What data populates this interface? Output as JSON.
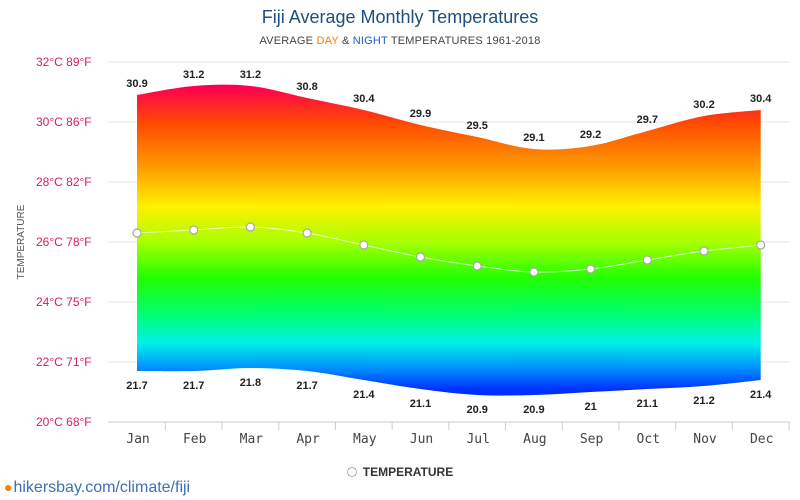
{
  "chart_data": {
    "type": "area",
    "title": "Fiji Average Monthly Temperatures",
    "subtitle": {
      "prefix": "AVERAGE ",
      "day": "DAY",
      "amp": " & ",
      "night": "NIGHT",
      "suffix": " TEMPERATURES 1961-2018"
    },
    "ylabel": "TEMPERATURE",
    "categories": [
      "Jan",
      "Feb",
      "Mar",
      "Apr",
      "May",
      "Jun",
      "Jul",
      "Aug",
      "Sep",
      "Oct",
      "Nov",
      "Dec"
    ],
    "y_ticks": [
      {
        "value": 20,
        "label": "20°C 68°F"
      },
      {
        "value": 22,
        "label": "22°C 71°F"
      },
      {
        "value": 24,
        "label": "24°C 75°F"
      },
      {
        "value": 26,
        "label": "26°C 78°F"
      },
      {
        "value": 28,
        "label": "28°C 82°F"
      },
      {
        "value": 30,
        "label": "30°C 86°F"
      },
      {
        "value": 32,
        "label": "32°C 89°F"
      }
    ],
    "ylim": [
      20,
      32
    ],
    "grid": true,
    "series": [
      {
        "key": "day",
        "values": [
          30.9,
          31.2,
          31.2,
          30.8,
          30.4,
          29.9,
          29.5,
          29.1,
          29.2,
          29.7,
          30.2,
          30.4
        ]
      },
      {
        "key": "night",
        "values": [
          21.7,
          21.7,
          21.8,
          21.7,
          21.4,
          21.1,
          20.9,
          20.9,
          21,
          21.1,
          21.2,
          21.4
        ]
      },
      {
        "key": "temperature",
        "name": "TEMPERATURE",
        "values": [
          26.3,
          26.4,
          26.5,
          26.3,
          25.9,
          25.5,
          25.2,
          25.0,
          25.1,
          25.4,
          25.7,
          25.9
        ]
      }
    ],
    "legend_position": "bottom-center"
  },
  "source": {
    "pin_icon": "location-pin-icon",
    "text": "hikersbay.com/climate/fiji"
  }
}
